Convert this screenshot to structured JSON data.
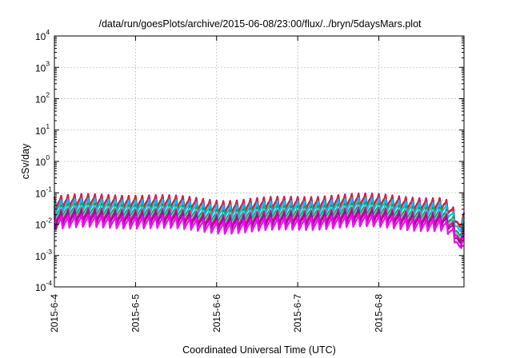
{
  "chart_data": {
    "type": "line",
    "title": "/data/run/goesPlots/archive/2015-06-08/23:00/flux/../bryn/5daysMars.plot",
    "xlabel": "Coordinated Universal Time (UTC)",
    "ylabel": "cSv/day",
    "x_tick_labels": [
      "2015-6-4",
      "2015-6-5",
      "2015-6-6",
      "2015-6-7",
      "2015-6-8"
    ],
    "x_range_days": [
      0,
      5.05
    ],
    "y_scale": "log",
    "y_tick_labels": [
      {
        "base": "10",
        "exp": "-4"
      },
      {
        "base": "10",
        "exp": "-3"
      },
      {
        "base": "10",
        "exp": "-2"
      },
      {
        "base": "10",
        "exp": "-1"
      },
      {
        "base": "10",
        "exp": "0"
      },
      {
        "base": "10",
        "exp": "1"
      },
      {
        "base": "10",
        "exp": "2"
      },
      {
        "base": "10",
        "exp": "3"
      },
      {
        "base": "10",
        "exp": "4"
      }
    ],
    "ylim": [
      0.0001,
      10000
    ],
    "grid": true,
    "legend": "none",
    "pattern": {
      "cycles_per_day": 12,
      "peak": 0.075,
      "trough": 0.03,
      "dip": {
        "day": 5.0,
        "min_factor": 0.12
      }
    },
    "series": [
      {
        "color": "#2200ff",
        "offset": 1.0
      },
      {
        "color": "#e8231e",
        "offset": 0.96
      },
      {
        "color": "#00bfff",
        "offset": 0.72
      },
      {
        "color": "#00a24a",
        "offset": 0.5
      },
      {
        "color": "#40e0d0",
        "offset": 0.42
      },
      {
        "color": "#e0117f",
        "offset": 0.36
      },
      {
        "color": "#8b1a8b",
        "offset": 0.3
      },
      {
        "color": "#ff00ff",
        "offset": 0.22
      }
    ]
  }
}
